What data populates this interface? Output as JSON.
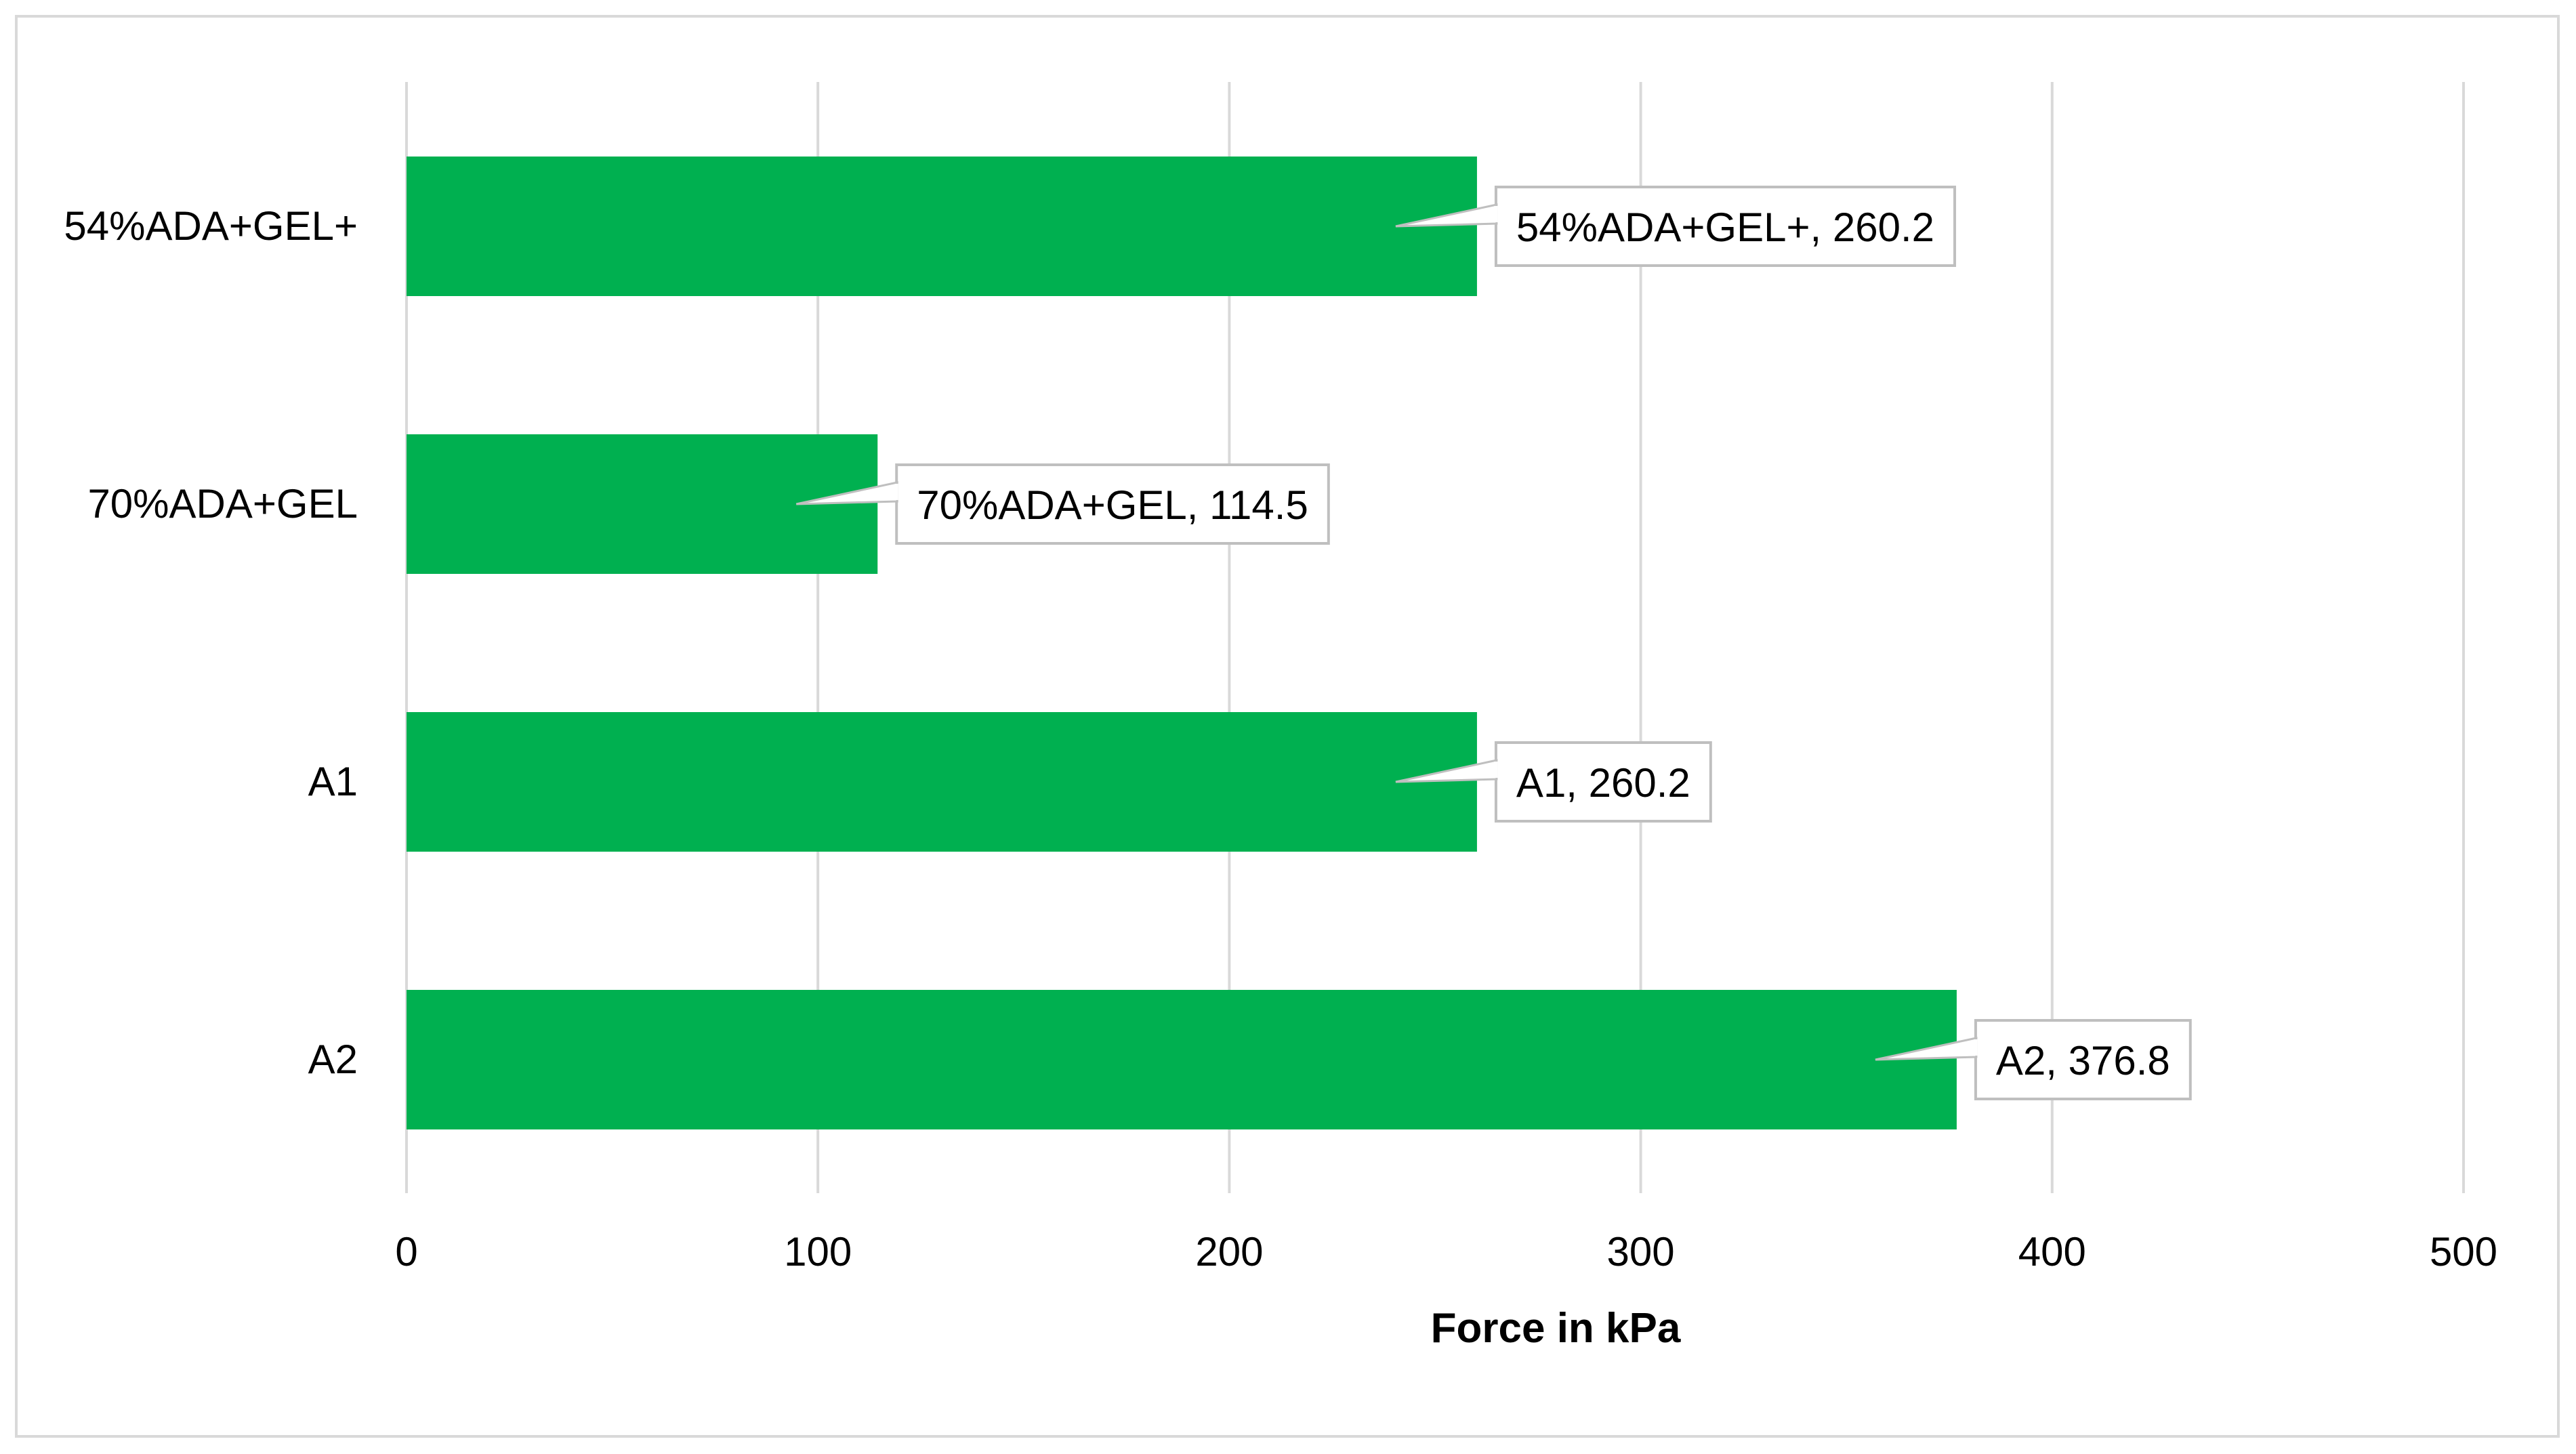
{
  "chart_data": {
    "type": "bar",
    "orientation": "horizontal",
    "categories": [
      "54%ADA+GEL+",
      "70%ADA+GEL",
      "A1",
      "A2"
    ],
    "values": [
      260.2,
      114.5,
      260.2,
      376.8
    ],
    "data_labels": [
      "54%ADA+GEL+, 260.2",
      "70%ADA+GEL, 114.5",
      "A1, 260.2",
      "A2, 376.8"
    ],
    "xlabel": "Force in kPa",
    "ylabel": "",
    "title": "",
    "xlim": [
      0,
      500
    ],
    "xticks": [
      0,
      100,
      200,
      300,
      400,
      500
    ],
    "grid": "vertical",
    "legend": "none",
    "bar_color": "#00b050",
    "grid_color": "#d9d9d9",
    "label_border_color": "#bfbfbf"
  }
}
